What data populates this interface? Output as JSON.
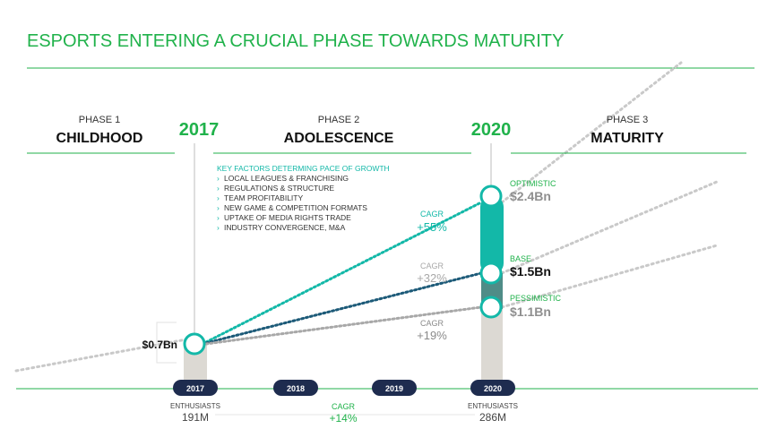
{
  "title": "ESPORTS ENTERING A CRUCIAL PHASE TOWARDS MATURITY",
  "phases": [
    {
      "label": "PHASE 1",
      "name": "CHILDHOOD"
    },
    {
      "label": "PHASE 2",
      "name": "ADOLESCENCE"
    },
    {
      "label": "PHASE 3",
      "name": "MATURITY"
    }
  ],
  "years_header": {
    "start": "2017",
    "end": "2020"
  },
  "key_factors": {
    "heading": "KEY FACTORS DETERMING PACE OF GROWTH",
    "items": [
      "LOCAL LEAGUES & FRANCHISING",
      "REGULATIONS & STRUCTURE",
      "TEAM PROFITABILITY",
      "NEW GAME & COMPETITION FORMATS",
      "UPTAKE OF MEDIA RIGHTS TRADE",
      "INDUSTRY CONVERGENCE, M&A"
    ]
  },
  "start_value": "$0.7Bn",
  "scenarios": [
    {
      "name": "OPTIMISTIC",
      "value": "$2.4Bn",
      "cagr_label": "CAGR",
      "cagr": "+55%",
      "color": "#13b8a8"
    },
    {
      "name": "BASE",
      "value": "$1.5Bn",
      "cagr_label": "CAGR",
      "cagr": "+32%",
      "color": "#1c5a78"
    },
    {
      "name": "PESSIMISTIC",
      "value": "$1.1Bn",
      "cagr_label": "CAGR",
      "cagr": "+19%",
      "color": "#a8a8a8"
    }
  ],
  "timeline": [
    "2017",
    "2018",
    "2019",
    "2020"
  ],
  "enthusiasts": {
    "start_label": "ENTHUSIASTS",
    "start_value": "191M",
    "end_label": "ENTHUSIASTS",
    "end_value": "286M",
    "cagr_label": "CAGR",
    "cagr": "+14%"
  },
  "colors": {
    "accent_green": "#20b24b",
    "teal": "#13b8a8",
    "navy": "#1e2c4f",
    "base_bar": "#4f8c87",
    "grey_bar": "#dcd9d3"
  }
}
